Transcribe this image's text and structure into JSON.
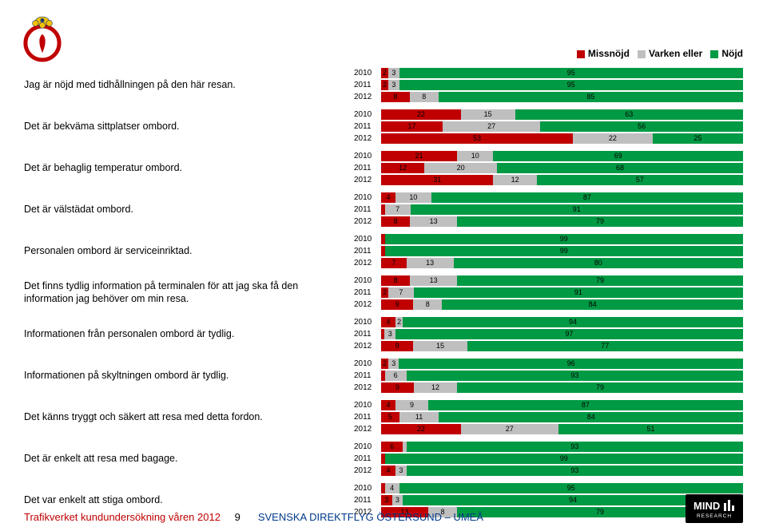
{
  "colors": {
    "missnojd": "#c00000",
    "varken": "#bfbfbf",
    "nojd": "#009a44",
    "text": "#000000"
  },
  "legend": [
    {
      "label": "Missnöjd",
      "key": "missnojd"
    },
    {
      "label": "Varken eller",
      "key": "varken"
    },
    {
      "label": "Nöjd",
      "key": "nojd"
    }
  ],
  "questions": [
    {
      "label": "Jag är nöjd med tidhållningen på den här resan.",
      "years": [
        {
          "y": "2010",
          "v": [
            2,
            3,
            95
          ]
        },
        {
          "y": "2011",
          "v": [
            2,
            3,
            95
          ]
        },
        {
          "y": "2012",
          "v": [
            8,
            8,
            85
          ]
        }
      ]
    },
    {
      "label": "Det är bekväma sittplatser ombord.",
      "years": [
        {
          "y": "2010",
          "v": [
            22,
            15,
            63
          ]
        },
        {
          "y": "2011",
          "v": [
            17,
            27,
            56
          ]
        },
        {
          "y": "2012",
          "v": [
            53,
            22,
            25
          ]
        }
      ]
    },
    {
      "label": "Det är behaglig temperatur ombord.",
      "years": [
        {
          "y": "2010",
          "v": [
            21,
            10,
            69
          ]
        },
        {
          "y": "2011",
          "v": [
            12,
            20,
            68
          ]
        },
        {
          "y": "2012",
          "v": [
            31,
            12,
            57
          ]
        }
      ]
    },
    {
      "label": "Det är välstädat ombord.",
      "years": [
        {
          "y": "2010",
          "v": [
            4,
            10,
            87
          ]
        },
        {
          "y": "2011",
          "v": [
            1,
            7,
            91
          ]
        },
        {
          "y": "2012",
          "v": [
            8,
            13,
            79
          ]
        }
      ]
    },
    {
      "label": "Personalen ombord är serviceinriktad.",
      "years": [
        {
          "y": "2010",
          "v": [
            1,
            0,
            99
          ]
        },
        {
          "y": "2011",
          "v": [
            1,
            0,
            99
          ]
        },
        {
          "y": "2012",
          "v": [
            7,
            13,
            80
          ]
        }
      ]
    },
    {
      "label": "Det finns tydlig information på terminalen för att jag ska få den information jag behöver om min resa.",
      "years": [
        {
          "y": "2010",
          "v": [
            8,
            13,
            79
          ]
        },
        {
          "y": "2011",
          "v": [
            2,
            7,
            91
          ]
        },
        {
          "y": "2012",
          "v": [
            9,
            8,
            84
          ]
        }
      ]
    },
    {
      "label": "Informationen från personalen ombord är tydlig.",
      "years": [
        {
          "y": "2010",
          "v": [
            4,
            2,
            94
          ]
        },
        {
          "y": "2011",
          "v": [
            1,
            3,
            97
          ]
        },
        {
          "y": "2012",
          "v": [
            9,
            15,
            77
          ]
        }
      ]
    },
    {
      "label": "Informationen på skyltningen ombord är tydlig.",
      "years": [
        {
          "y": "2010",
          "v": [
            2,
            3,
            96
          ]
        },
        {
          "y": "2011",
          "v": [
            1,
            6,
            93
          ]
        },
        {
          "y": "2012",
          "v": [
            9,
            12,
            79
          ]
        }
      ]
    },
    {
      "label": "Det känns tryggt och säkert att resa med detta fordon.",
      "years": [
        {
          "y": "2010",
          "v": [
            4,
            9,
            87
          ]
        },
        {
          "y": "2011",
          "v": [
            5,
            11,
            84
          ]
        },
        {
          "y": "2012",
          "v": [
            22,
            27,
            51
          ]
        }
      ]
    },
    {
      "label": "Det är enkelt att resa med bagage.",
      "years": [
        {
          "y": "2010",
          "v": [
            6,
            1,
            93
          ]
        },
        {
          "y": "2011",
          "v": [
            1,
            0,
            99
          ]
        },
        {
          "y": "2012",
          "v": [
            4,
            3,
            93
          ]
        }
      ]
    },
    {
      "label": "Det var enkelt att stiga ombord.",
      "years": [
        {
          "y": "2010",
          "v": [
            1,
            4,
            95
          ]
        },
        {
          "y": "2011",
          "v": [
            3,
            3,
            94
          ]
        },
        {
          "y": "2012",
          "v": [
            13,
            8,
            79
          ]
        }
      ]
    }
  ],
  "footer": {
    "left": "Trafikverket kundundersökning våren 2012",
    "page": "9",
    "mid": "SVENSKA DIREKTFLYG ÖSTERSUND – UMEÅ",
    "logo_text": "RESEARCH"
  }
}
